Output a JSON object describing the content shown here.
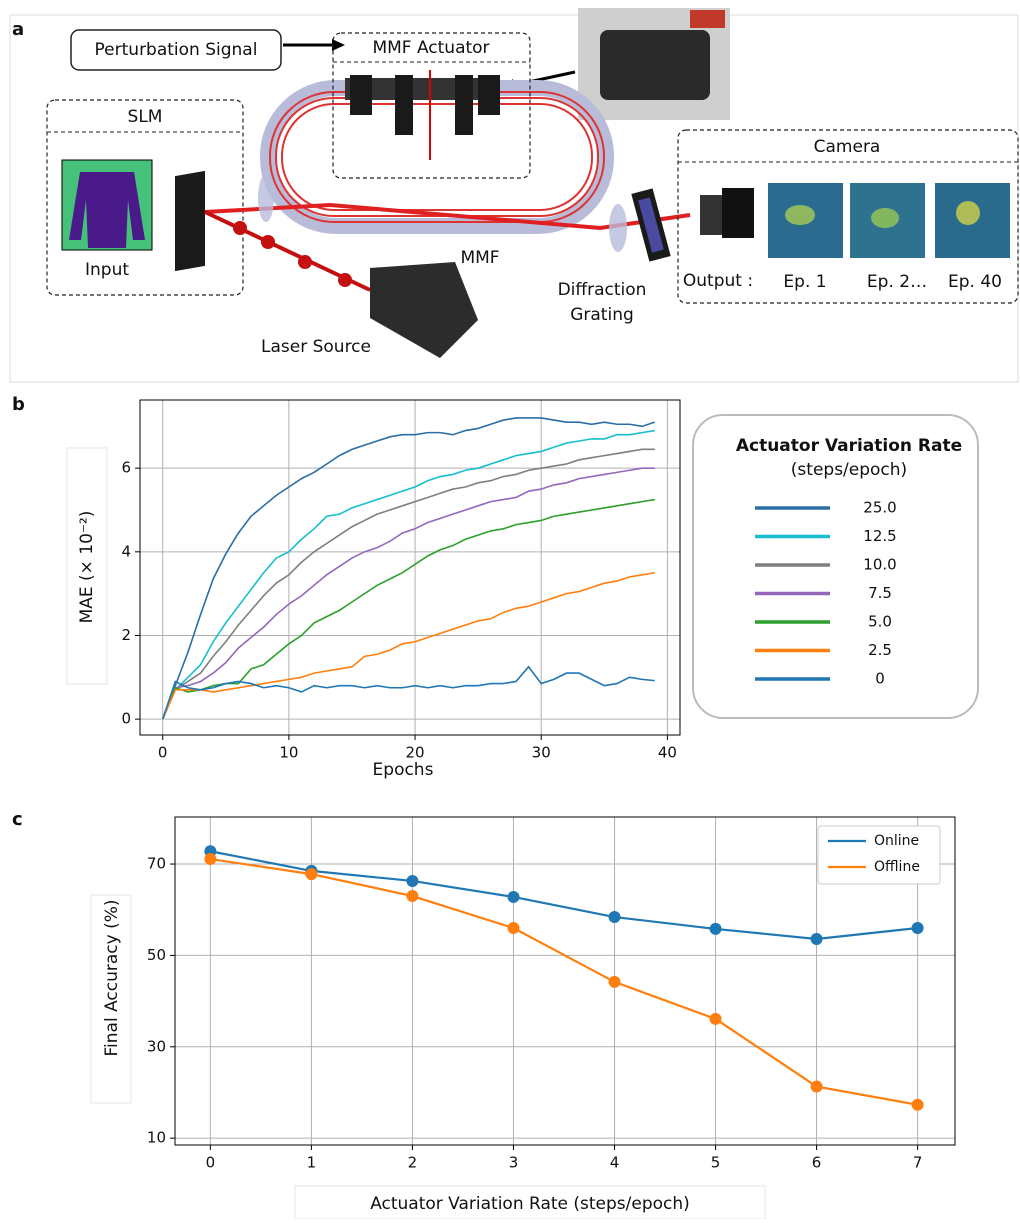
{
  "panel_labels": [
    "a",
    "b",
    "c"
  ],
  "diagram": {
    "perturbation_signal": "Perturbation Signal",
    "actuator": "MMF Actuator",
    "slm": "SLM",
    "input": "Input",
    "laser": "Laser Source",
    "fiber": "MMF",
    "grating": [
      "Diffraction",
      "Grating"
    ],
    "camera": "Camera",
    "output": "Output :",
    "epochs": [
      "Ep. 1",
      "Ep. 2…",
      "Ep. 40"
    ]
  },
  "chart_data": [
    {
      "type": "line",
      "xlabel": "Epochs",
      "ylabel": "MAE (× 10⁻²)",
      "legend_title": "Actuator Variation Rate",
      "legend_subtitle": "(steps/epoch)",
      "x": [
        0,
        1,
        2,
        3,
        4,
        5,
        6,
        7,
        8,
        9,
        10,
        11,
        12,
        13,
        14,
        15,
        16,
        17,
        18,
        19,
        20,
        21,
        22,
        23,
        24,
        25,
        26,
        27,
        28,
        29,
        30,
        31,
        32,
        33,
        34,
        35,
        36,
        37,
        38,
        39
      ],
      "series": [
        {
          "name": "25.0",
          "color": "#2b6ea6",
          "values": [
            0,
            0.8,
            1.6,
            2.5,
            3.35,
            3.95,
            4.45,
            4.85,
            5.1,
            5.35,
            5.55,
            5.75,
            5.9,
            6.1,
            6.3,
            6.45,
            6.55,
            6.65,
            6.75,
            6.8,
            6.8,
            6.85,
            6.85,
            6.8,
            6.9,
            6.95,
            7.05,
            7.15,
            7.2,
            7.2,
            7.2,
            7.15,
            7.1,
            7.1,
            7.05,
            7.1,
            7.05,
            7.05,
            7.0,
            7.1
          ]
        },
        {
          "name": "12.5",
          "color": "#17becf",
          "values": [
            0,
            0.7,
            1.0,
            1.3,
            1.85,
            2.3,
            2.7,
            3.1,
            3.5,
            3.85,
            4.0,
            4.3,
            4.55,
            4.85,
            4.9,
            5.05,
            5.15,
            5.25,
            5.35,
            5.45,
            5.55,
            5.7,
            5.8,
            5.85,
            5.95,
            6.0,
            6.1,
            6.2,
            6.3,
            6.35,
            6.4,
            6.5,
            6.6,
            6.65,
            6.7,
            6.7,
            6.8,
            6.8,
            6.85,
            6.9
          ]
        },
        {
          "name": "10.0",
          "color": "#7f7f7f",
          "values": [
            0,
            0.7,
            0.9,
            1.1,
            1.5,
            1.85,
            2.25,
            2.6,
            2.95,
            3.25,
            3.45,
            3.75,
            4.0,
            4.2,
            4.4,
            4.6,
            4.75,
            4.9,
            5.0,
            5.1,
            5.2,
            5.3,
            5.4,
            5.5,
            5.55,
            5.65,
            5.7,
            5.8,
            5.85,
            5.95,
            6.0,
            6.05,
            6.1,
            6.2,
            6.25,
            6.3,
            6.35,
            6.4,
            6.45,
            6.45
          ]
        },
        {
          "name": "7.5",
          "color": "#9467bd",
          "values": [
            0,
            0.75,
            0.8,
            0.9,
            1.1,
            1.35,
            1.7,
            1.95,
            2.2,
            2.5,
            2.75,
            2.95,
            3.2,
            3.45,
            3.65,
            3.85,
            4.0,
            4.1,
            4.25,
            4.45,
            4.55,
            4.7,
            4.8,
            4.9,
            5.0,
            5.1,
            5.2,
            5.25,
            5.3,
            5.45,
            5.5,
            5.6,
            5.65,
            5.75,
            5.8,
            5.85,
            5.9,
            5.95,
            6.0,
            6.0
          ]
        },
        {
          "name": "5.0",
          "color": "#2ca02c",
          "values": [
            0,
            0.75,
            0.65,
            0.7,
            0.8,
            0.85,
            0.85,
            1.2,
            1.3,
            1.55,
            1.8,
            2.0,
            2.3,
            2.45,
            2.6,
            2.8,
            3.0,
            3.2,
            3.35,
            3.5,
            3.7,
            3.9,
            4.05,
            4.15,
            4.3,
            4.4,
            4.5,
            4.55,
            4.65,
            4.7,
            4.75,
            4.85,
            4.9,
            4.95,
            5.0,
            5.05,
            5.1,
            5.15,
            5.2,
            5.25
          ]
        },
        {
          "name": "2.5",
          "color": "#ff7f0e",
          "values": [
            0,
            0.7,
            0.7,
            0.7,
            0.65,
            0.7,
            0.75,
            0.8,
            0.85,
            0.9,
            0.95,
            1.0,
            1.1,
            1.15,
            1.2,
            1.25,
            1.5,
            1.55,
            1.65,
            1.8,
            1.85,
            1.95,
            2.05,
            2.15,
            2.25,
            2.35,
            2.4,
            2.55,
            2.65,
            2.7,
            2.8,
            2.9,
            3.0,
            3.05,
            3.15,
            3.25,
            3.3,
            3.4,
            3.45,
            3.5
          ]
        },
        {
          "name": "0",
          "color": "#1f77b4",
          "values": [
            0,
            0.9,
            0.75,
            0.7,
            0.75,
            0.85,
            0.9,
            0.85,
            0.75,
            0.8,
            0.75,
            0.65,
            0.8,
            0.75,
            0.8,
            0.8,
            0.75,
            0.8,
            0.75,
            0.75,
            0.8,
            0.75,
            0.8,
            0.75,
            0.8,
            0.8,
            0.85,
            0.85,
            0.9,
            1.25,
            0.85,
            0.95,
            1.1,
            1.1,
            0.95,
            0.8,
            0.85,
            1.0,
            0.95,
            0.92
          ]
        }
      ],
      "xlim": [
        -1.8,
        41
      ],
      "ylim": [
        -0.38,
        7.63
      ],
      "xticks": [
        0,
        10,
        20,
        30,
        40
      ],
      "yticks": [
        0,
        2,
        4,
        6
      ],
      "grid": true
    },
    {
      "type": "line",
      "markers": true,
      "xlabel": "Actuator Variation Rate (steps/epoch)",
      "ylabel": "Final Accuracy (%)",
      "x": [
        0,
        1,
        2,
        3,
        4,
        5,
        6,
        7
      ],
      "series": [
        {
          "name": "Online",
          "color": "#1f77b4",
          "values": [
            72.8,
            68.5,
            66.3,
            62.8,
            58.4,
            55.8,
            53.6,
            56.0
          ]
        },
        {
          "name": "Offline",
          "color": "#ff7f0e",
          "values": [
            71.1,
            67.8,
            63.0,
            56.0,
            44.2,
            36.1,
            21.3,
            17.3
          ]
        }
      ],
      "xlim": [
        -0.35,
        7.37
      ],
      "ylim": [
        8.5,
        80.3
      ],
      "xticks": [
        0,
        1,
        2,
        3,
        4,
        5,
        6,
        7
      ],
      "yticks": [
        10,
        30,
        50,
        70
      ],
      "grid": true,
      "legend": "upper right"
    }
  ]
}
